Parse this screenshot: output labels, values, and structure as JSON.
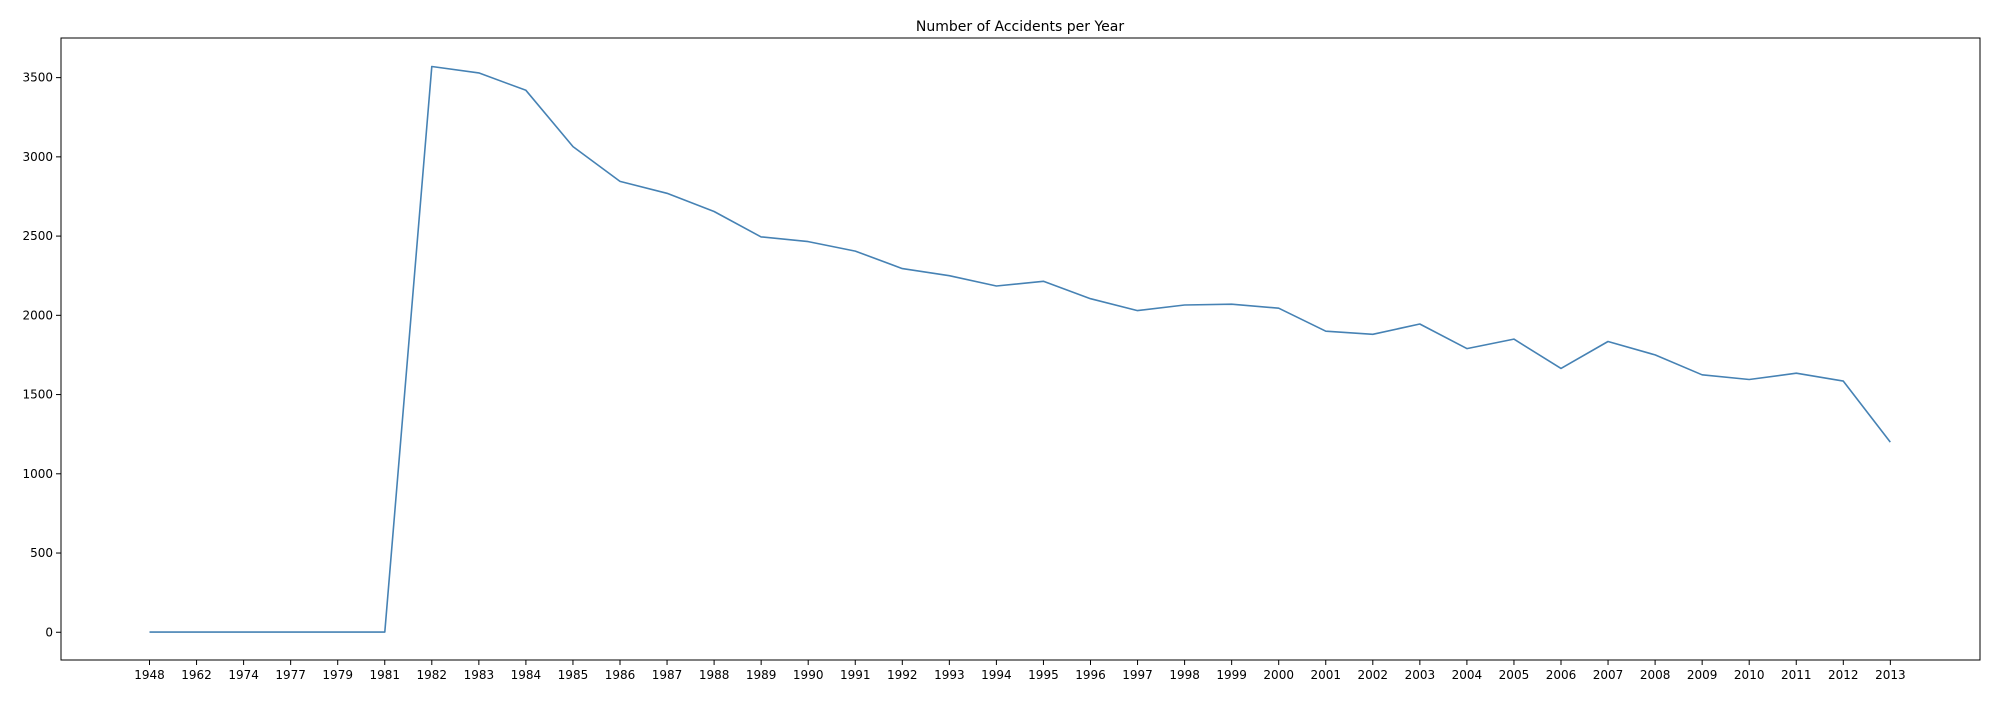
{
  "chart_data": {
    "type": "line",
    "title": "Number of Accidents per Year",
    "xlabel": "",
    "ylabel": "",
    "categories": [
      "1948",
      "1962",
      "1974",
      "1977",
      "1979",
      "1981",
      "1982",
      "1983",
      "1984",
      "1985",
      "1986",
      "1987",
      "1988",
      "1989",
      "1990",
      "1991",
      "1992",
      "1993",
      "1994",
      "1995",
      "1996",
      "1997",
      "1998",
      "1999",
      "2000",
      "2001",
      "2002",
      "2003",
      "2004",
      "2005",
      "2006",
      "2007",
      "2008",
      "2009",
      "2010",
      "2011",
      "2012",
      "2013"
    ],
    "series": [
      {
        "values": [
          1,
          1,
          1,
          1,
          1,
          1,
          3570,
          3530,
          3420,
          3065,
          2845,
          2770,
          2655,
          2495,
          2465,
          2405,
          2295,
          2250,
          2185,
          2215,
          2105,
          2030,
          2065,
          2070,
          2045,
          1900,
          1880,
          1945,
          1790,
          1850,
          1665,
          1835,
          1750,
          1625,
          1595,
          1635,
          1585,
          1200
        ]
      }
    ],
    "ylim": [
      -175,
      3750
    ],
    "yticks": [
      0,
      500,
      1000,
      1500,
      2000,
      2500,
      3000,
      3500
    ],
    "grid": false,
    "line_color": "#4682b4",
    "axis_color": "#000000"
  }
}
